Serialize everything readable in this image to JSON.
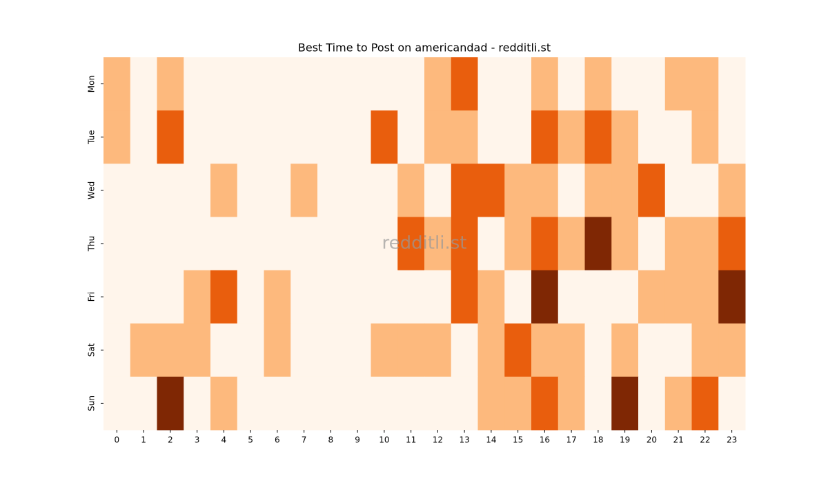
{
  "chart_data": {
    "type": "heatmap",
    "title": "Best Time to Post on americandad - redditli.st",
    "watermark": "redditli.st",
    "x": [
      "0",
      "1",
      "2",
      "3",
      "4",
      "5",
      "6",
      "7",
      "8",
      "9",
      "10",
      "11",
      "12",
      "13",
      "14",
      "15",
      "16",
      "17",
      "18",
      "19",
      "20",
      "21",
      "22",
      "23"
    ],
    "y": [
      "Mon",
      "Tue",
      "Wed",
      "Thu",
      "Fri",
      "Sat",
      "Sun"
    ],
    "colors": [
      "#fff5eb",
      "#fdb97d",
      "#e95e0d",
      "#7f2704"
    ],
    "values": [
      [
        1,
        0,
        1,
        0,
        0,
        0,
        0,
        0,
        0,
        0,
        0,
        0,
        1,
        2,
        0,
        0,
        1,
        0,
        1,
        0,
        0,
        1,
        1,
        0
      ],
      [
        1,
        0,
        2,
        0,
        0,
        0,
        0,
        0,
        0,
        0,
        2,
        0,
        1,
        1,
        0,
        0,
        2,
        1,
        2,
        1,
        0,
        0,
        1,
        0
      ],
      [
        0,
        0,
        0,
        0,
        1,
        0,
        0,
        1,
        0,
        0,
        0,
        1,
        0,
        2,
        2,
        1,
        1,
        0,
        1,
        1,
        2,
        0,
        0,
        1
      ],
      [
        0,
        0,
        0,
        0,
        0,
        0,
        0,
        0,
        0,
        0,
        0,
        2,
        1,
        2,
        0,
        1,
        2,
        1,
        3,
        1,
        0,
        1,
        1,
        2
      ],
      [
        0,
        0,
        0,
        1,
        2,
        0,
        1,
        0,
        0,
        0,
        0,
        0,
        0,
        2,
        1,
        0,
        3,
        0,
        0,
        0,
        1,
        1,
        1,
        3
      ],
      [
        0,
        1,
        1,
        1,
        0,
        0,
        1,
        0,
        0,
        0,
        1,
        1,
        1,
        0,
        1,
        2,
        1,
        1,
        0,
        1,
        0,
        0,
        1,
        1
      ],
      [
        0,
        0,
        3,
        0,
        1,
        0,
        0,
        0,
        0,
        0,
        0,
        0,
        0,
        0,
        1,
        1,
        2,
        1,
        0,
        3,
        0,
        1,
        2,
        0
      ]
    ]
  }
}
